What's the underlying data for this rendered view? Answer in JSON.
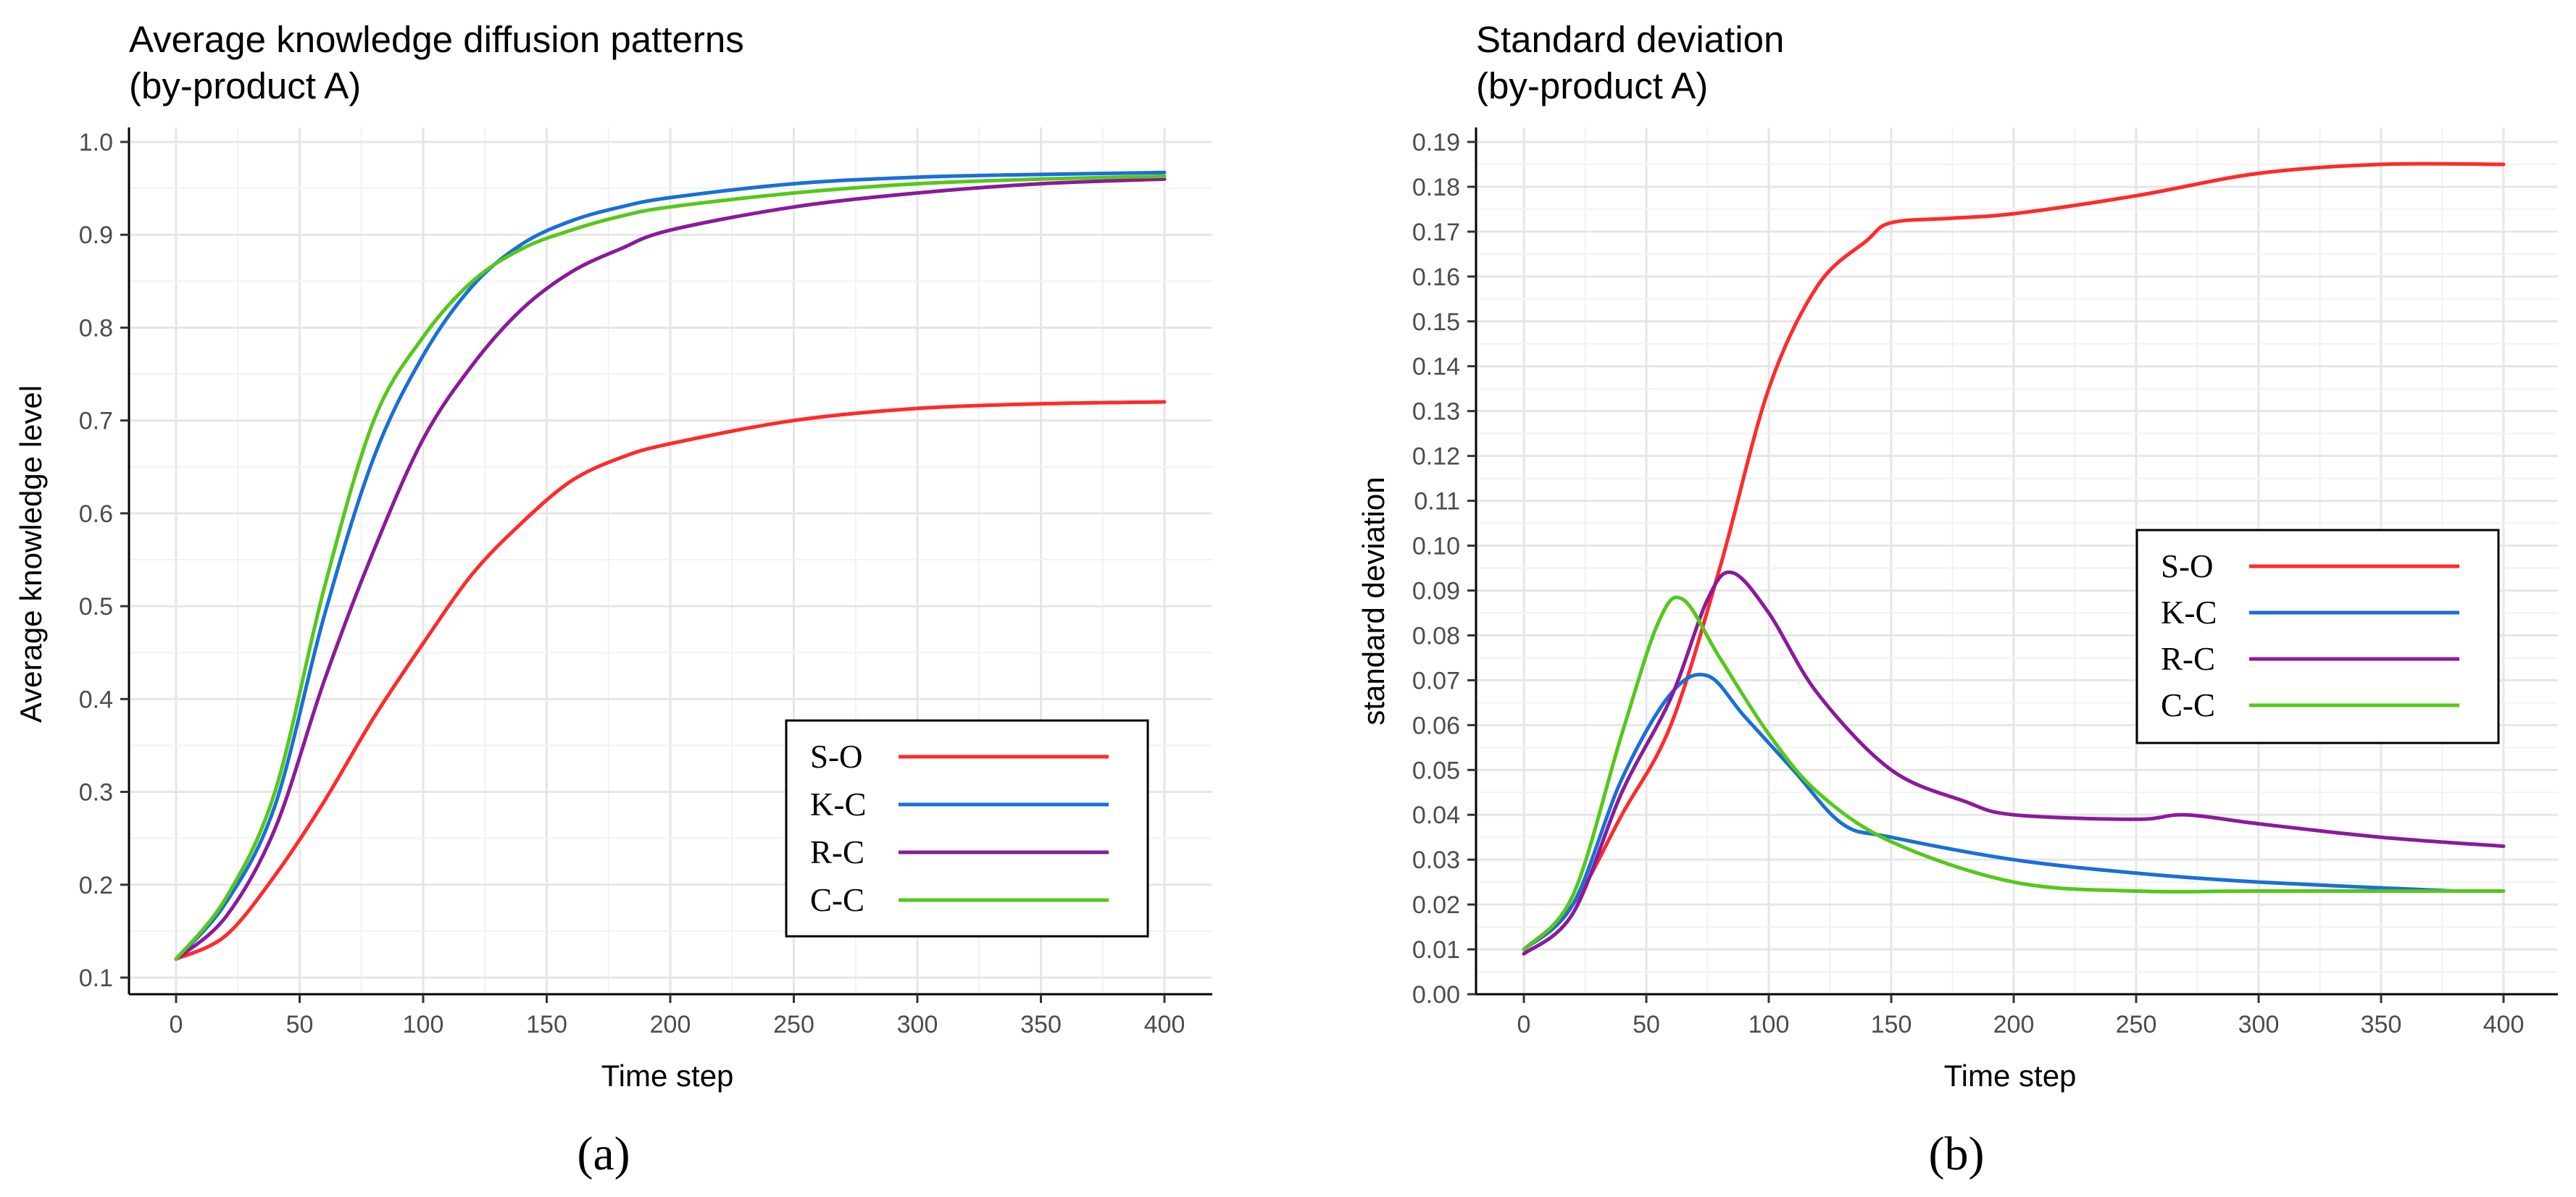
{
  "chart_data": [
    {
      "type": "line",
      "title_lines": [
        "Average knowledge diffusion patterns",
        "(by-product A)"
      ],
      "xlabel": "Time step",
      "ylabel": "Average knowledge level",
      "xlim": [
        0,
        400
      ],
      "ylim": [
        0.1,
        1.0
      ],
      "xticks": [
        0,
        50,
        100,
        150,
        200,
        250,
        300,
        350,
        400
      ],
      "yticks": [
        0.1,
        0.2,
        0.3,
        0.4,
        0.5,
        0.6,
        0.7,
        0.8,
        0.9,
        1.0
      ],
      "ytick_labels": [
        "0.1",
        "0.2",
        "0.3",
        "0.4",
        "0.5",
        "0.6",
        "0.7",
        "0.8",
        "0.9",
        "1.0"
      ],
      "grid": true,
      "legend_position": "bottom-right",
      "caption": "(a)",
      "series": [
        {
          "name": "S-O",
          "color": "#ff2a2a",
          "x": [
            0,
            20,
            40,
            60,
            80,
            100,
            120,
            140,
            160,
            180,
            200,
            250,
            300,
            350,
            400
          ],
          "y": [
            0.12,
            0.145,
            0.21,
            0.29,
            0.38,
            0.46,
            0.535,
            0.59,
            0.635,
            0.66,
            0.675,
            0.7,
            0.713,
            0.718,
            0.72
          ]
        },
        {
          "name": "K-C",
          "color": "#1a6fd8",
          "x": [
            0,
            20,
            40,
            60,
            80,
            100,
            120,
            140,
            160,
            180,
            200,
            250,
            300,
            350,
            400
          ],
          "y": [
            0.12,
            0.18,
            0.285,
            0.49,
            0.66,
            0.77,
            0.845,
            0.89,
            0.915,
            0.93,
            0.94,
            0.955,
            0.962,
            0.965,
            0.967
          ]
        },
        {
          "name": "R-C",
          "color": "#8b1a9a",
          "x": [
            0,
            20,
            40,
            60,
            80,
            100,
            120,
            140,
            160,
            180,
            200,
            250,
            300,
            350,
            400
          ],
          "y": [
            0.12,
            0.165,
            0.26,
            0.42,
            0.56,
            0.68,
            0.76,
            0.82,
            0.86,
            0.885,
            0.905,
            0.93,
            0.945,
            0.955,
            0.96
          ]
        },
        {
          "name": "C-C",
          "color": "#55c81a",
          "x": [
            0,
            20,
            40,
            60,
            80,
            100,
            120,
            140,
            160,
            180,
            200,
            250,
            300,
            350,
            400
          ],
          "y": [
            0.12,
            0.185,
            0.3,
            0.52,
            0.7,
            0.79,
            0.85,
            0.885,
            0.905,
            0.92,
            0.93,
            0.945,
            0.955,
            0.96,
            0.963
          ]
        }
      ]
    },
    {
      "type": "line",
      "title_lines": [
        "Standard deviation",
        "(by-product A)"
      ],
      "xlabel": "Time step",
      "ylabel": "standard deviation",
      "xlim": [
        0,
        400
      ],
      "ylim": [
        0.0,
        0.19
      ],
      "xticks": [
        0,
        50,
        100,
        150,
        200,
        250,
        300,
        350,
        400
      ],
      "yticks": [
        0.0,
        0.01,
        0.02,
        0.03,
        0.04,
        0.05,
        0.06,
        0.07,
        0.08,
        0.09,
        0.1,
        0.11,
        0.12,
        0.13,
        0.14,
        0.15,
        0.16,
        0.17,
        0.18,
        0.19
      ],
      "ytick_labels": [
        "0.00",
        "0.01",
        "0.02",
        "0.03",
        "0.04",
        "0.05",
        "0.06",
        "0.07",
        "0.08",
        "0.09",
        "0.10",
        "0.11",
        "0.12",
        "0.13",
        "0.14",
        "0.15",
        "0.16",
        "0.17",
        "0.18",
        "0.19"
      ],
      "grid": true,
      "legend_position": "center-right",
      "caption": "(b)",
      "series": [
        {
          "name": "S-O",
          "color": "#ff2a2a",
          "x": [
            0,
            20,
            40,
            60,
            80,
            100,
            120,
            140,
            150,
            175,
            200,
            250,
            300,
            350,
            400
          ],
          "y": [
            0.01,
            0.02,
            0.04,
            0.06,
            0.095,
            0.135,
            0.158,
            0.168,
            0.172,
            0.173,
            0.174,
            0.178,
            0.183,
            0.185,
            0.185
          ]
        },
        {
          "name": "K-C",
          "color": "#1a6fd8",
          "x": [
            0,
            20,
            40,
            60,
            75,
            90,
            110,
            130,
            150,
            200,
            250,
            300,
            380
          ],
          "y": [
            0.01,
            0.02,
            0.048,
            0.067,
            0.071,
            0.062,
            0.05,
            0.038,
            0.035,
            0.03,
            0.027,
            0.025,
            0.023
          ]
        },
        {
          "name": "R-C",
          "color": "#8b1a9a",
          "x": [
            0,
            20,
            40,
            60,
            75,
            85,
            100,
            120,
            150,
            180,
            200,
            250,
            270,
            300,
            350,
            400
          ],
          "y": [
            0.009,
            0.018,
            0.045,
            0.066,
            0.088,
            0.094,
            0.085,
            0.067,
            0.05,
            0.043,
            0.04,
            0.039,
            0.04,
            0.038,
            0.035,
            0.033
          ]
        },
        {
          "name": "C-C",
          "color": "#55c81a",
          "x": [
            0,
            20,
            40,
            55,
            65,
            80,
            100,
            120,
            150,
            200,
            250,
            300,
            400
          ],
          "y": [
            0.01,
            0.022,
            0.058,
            0.083,
            0.088,
            0.075,
            0.058,
            0.045,
            0.034,
            0.025,
            0.023,
            0.023,
            0.023
          ]
        }
      ]
    }
  ]
}
